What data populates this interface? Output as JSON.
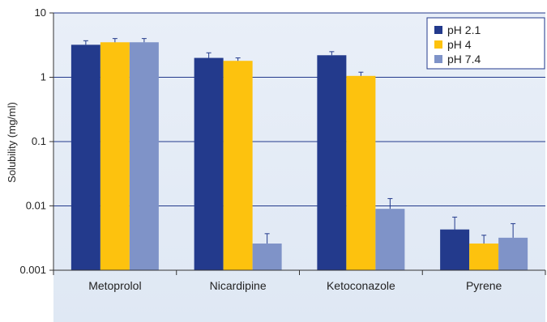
{
  "chart_data": {
    "type": "bar",
    "ylabel": "Solubility (mg/ml)",
    "yscale": "log",
    "ylim": [
      0.001,
      10
    ],
    "yticks": [
      "0.001",
      "0.01",
      "0.1",
      "1",
      "10"
    ],
    "categories": [
      "Metoprolol",
      "Nicardipine",
      "Ketoconazole",
      "Pyrene"
    ],
    "series": [
      {
        "name": "pH 2.1",
        "color": "#233a8c",
        "values": [
          3.2,
          2.0,
          2.2,
          0.0043
        ],
        "error": [
          3.7,
          2.4,
          2.5,
          0.0067
        ]
      },
      {
        "name": "pH 4",
        "color": "#fdc20e",
        "values": [
          3.5,
          1.8,
          1.05,
          0.0026
        ],
        "error": [
          4.0,
          2.0,
          1.2,
          0.0035
        ]
      },
      {
        "name": "pH 7.4",
        "color": "#7f93c8",
        "values": [
          3.5,
          0.0026,
          0.009,
          0.0032
        ],
        "error": [
          4.0,
          0.0037,
          0.013,
          0.0053
        ]
      }
    ],
    "grid": true,
    "legend_position": "top-right",
    "colors": {
      "plot_background": "#e7eef8",
      "gridline": "#233a8c"
    }
  }
}
